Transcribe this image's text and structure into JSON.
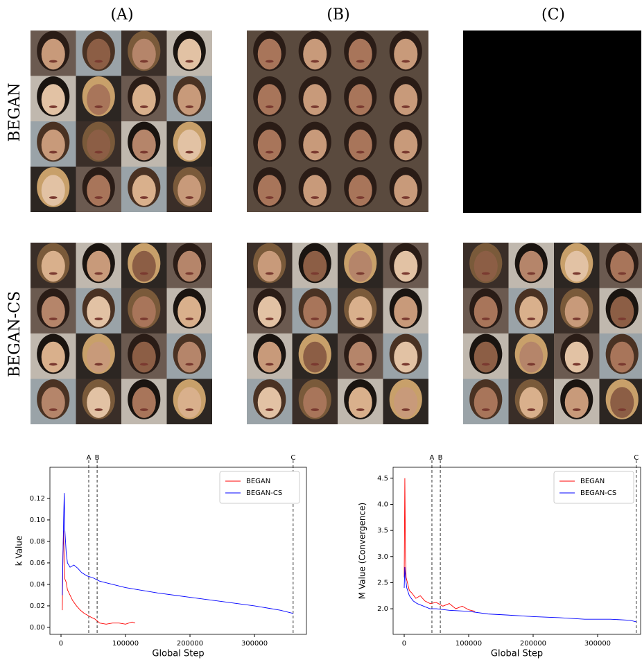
{
  "figure": {
    "columns": [
      "(A)",
      "(B)",
      "(C)"
    ],
    "rows": [
      "BEGAN",
      "BEGAN-CS"
    ]
  },
  "chart_data": [
    {
      "type": "line",
      "xlabel": "Global Step",
      "ylabel": "k Value",
      "xlim": [
        -17200,
        380600
      ],
      "ylim": [
        -0.0065,
        0.149
      ],
      "xticks": [
        0,
        100000,
        200000,
        300000
      ],
      "yticks": [
        {
          "value": 0,
          "label": "0.00"
        },
        {
          "value": 0.02,
          "label": "0.02"
        },
        {
          "value": 0.04,
          "label": "0.04"
        },
        {
          "value": 0.06,
          "label": "0.06"
        },
        {
          "value": 0.08,
          "label": "0.08"
        },
        {
          "value": 0.1,
          "label": "0.10"
        },
        {
          "value": 0.12,
          "label": "0.12"
        }
      ],
      "legend": "upper right",
      "markers": [
        {
          "label": "A",
          "x": 43000
        },
        {
          "label": "B",
          "x": 56000
        },
        {
          "label": "C",
          "x": 360000
        }
      ],
      "series": [
        {
          "name": "BEGAN",
          "color": "#ff0000",
          "x": [
            2000,
            3000,
            4000,
            5000,
            6000,
            8000,
            10000,
            14000,
            18000,
            24000,
            30000,
            36000,
            42000,
            48000,
            52000,
            56000,
            60000,
            70000,
            80000,
            90000,
            100000,
            110000,
            115000
          ],
          "values": [
            0.016,
            0.07,
            0.09,
            0.06,
            0.045,
            0.042,
            0.035,
            0.03,
            0.025,
            0.02,
            0.016,
            0.013,
            0.011,
            0.009,
            0.008,
            0.006,
            0.004,
            0.003,
            0.004,
            0.004,
            0.003,
            0.005,
            0.004
          ]
        },
        {
          "name": "BEGAN-CS",
          "color": "#0000ff",
          "x": [
            2000,
            4000,
            5000,
            6000,
            8000,
            10000,
            14000,
            20000,
            26000,
            32000,
            40000,
            50000,
            60000,
            80000,
            100000,
            120000,
            150000,
            200000,
            250000,
            300000,
            340000,
            360000
          ],
          "values": [
            0.03,
            0.1,
            0.125,
            0.09,
            0.07,
            0.06,
            0.056,
            0.058,
            0.055,
            0.051,
            0.048,
            0.046,
            0.043,
            0.04,
            0.037,
            0.035,
            0.032,
            0.028,
            0.024,
            0.02,
            0.016,
            0.013
          ]
        }
      ]
    },
    {
      "type": "line",
      "xlabel": "Global Step",
      "ylabel": "M Value (Convergence)",
      "xlim": [
        -17200,
        366700
      ],
      "ylim": [
        1.51,
        4.71
      ],
      "xticks": [
        0,
        100000,
        200000,
        300000
      ],
      "yticks": [
        {
          "value": 2,
          "label": "2.0"
        },
        2.5,
        {
          "value": 3,
          "label": "3.0"
        },
        3.5,
        {
          "value": 4,
          "label": "4.0"
        },
        4.5
      ],
      "legend": "upper right",
      "markers": [
        {
          "label": "A",
          "x": 43000
        },
        {
          "label": "B",
          "x": 56000
        },
        {
          "label": "C",
          "x": 360000
        }
      ],
      "series": [
        {
          "name": "BEGAN",
          "color": "#ff0000",
          "x": [
            0,
            1000,
            2000,
            3000,
            5000,
            8000,
            12000,
            18000,
            25000,
            32000,
            40000,
            50000,
            60000,
            70000,
            80000,
            90000,
            100000,
            110000
          ],
          "values": [
            2.6,
            4.5,
            3.0,
            2.6,
            2.5,
            2.35,
            2.3,
            2.2,
            2.25,
            2.15,
            2.1,
            2.12,
            2.05,
            2.1,
            2.0,
            2.05,
            1.98,
            1.95
          ]
        },
        {
          "name": "BEGAN-CS",
          "color": "#0000ff",
          "x": [
            0,
            1000,
            2000,
            4000,
            8000,
            14000,
            20000,
            30000,
            40000,
            50000,
            70000,
            100000,
            130000,
            160000,
            200000,
            240000,
            280000,
            320000,
            350000,
            360000
          ],
          "values": [
            2.4,
            2.8,
            2.6,
            2.4,
            2.25,
            2.15,
            2.1,
            2.05,
            2.0,
            2.0,
            1.97,
            1.95,
            1.9,
            1.88,
            1.85,
            1.83,
            1.8,
            1.8,
            1.78,
            1.75
          ]
        }
      ]
    }
  ]
}
